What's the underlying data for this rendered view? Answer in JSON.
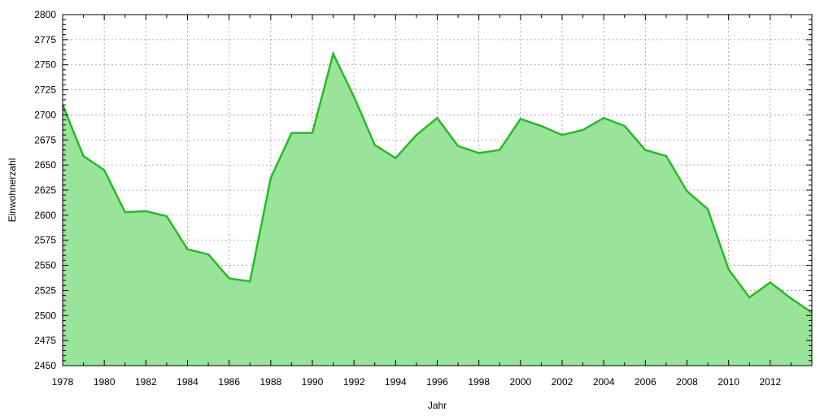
{
  "chart_data": {
    "type": "area",
    "title": "",
    "xlabel": "Jahr",
    "ylabel": "Einwohnerzahl",
    "xlim": [
      1978,
      2014
    ],
    "ylim": [
      2450,
      2800
    ],
    "x_ticks": [
      "1978",
      "1980",
      "1982",
      "1984",
      "1986",
      "1988",
      "1990",
      "1992",
      "1994",
      "1996",
      "1998",
      "2000",
      "2002",
      "2004",
      "2006",
      "2008",
      "2010",
      "2012"
    ],
    "y_ticks": [
      "2450",
      "2475",
      "2500",
      "2525",
      "2550",
      "2575",
      "2600",
      "2625",
      "2650",
      "2675",
      "2700",
      "2725",
      "2750",
      "2775",
      "2800"
    ],
    "grid": true,
    "colors": {
      "line": "#1fbf1f",
      "fill": "#9ae39a"
    },
    "series": [
      {
        "x": [
          1978,
          1979,
          1980,
          1981,
          1982,
          1983,
          1984,
          1985,
          1986,
          1987,
          1988,
          1989,
          1990,
          1991,
          1992,
          1993,
          1994,
          1995,
          1996,
          1997,
          1998,
          1999,
          2000,
          2001,
          2002,
          2003,
          2004,
          2005,
          2006,
          2007,
          2008,
          2009,
          2010,
          2011,
          2012,
          2013,
          2014
        ],
        "values": [
          2710,
          2659,
          2645,
          2603,
          2604,
          2599,
          2566,
          2561,
          2537,
          2534,
          2637,
          2682,
          2682,
          2761,
          2718,
          2670,
          2657,
          2680,
          2697,
          2669,
          2662,
          2665,
          2696,
          2689,
          2680,
          2685,
          2697,
          2689,
          2665,
          2659,
          2624,
          2606,
          2546,
          2518,
          2533,
          2517,
          2503
        ]
      }
    ]
  }
}
